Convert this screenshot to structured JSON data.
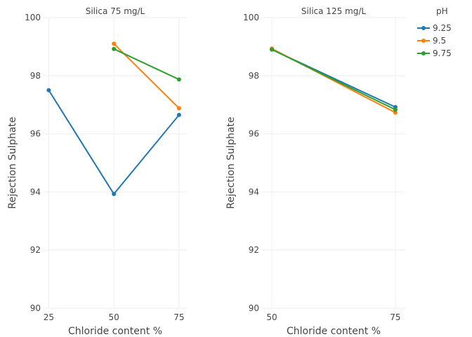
{
  "chart_data": {
    "type": "line",
    "legend": {
      "title": "pH",
      "placement": "top-right",
      "entries": [
        {
          "name": "9.25",
          "color": "#1f77b4"
        },
        {
          "name": "9.5",
          "color": "#ff7f0e"
        },
        {
          "name": "9.75",
          "color": "#2ca02c"
        }
      ]
    },
    "panels": [
      {
        "title": "Silica 75 mg/L",
        "xlabel": "Chloride content %",
        "ylabel": "Rejection Sulphate",
        "x_ticks": [
          25,
          50,
          75
        ],
        "xlim": [
          23,
          78
        ],
        "ylim": [
          90,
          100
        ],
        "y_ticks": [
          90,
          92,
          94,
          96,
          98,
          100
        ],
        "grid": true,
        "series": [
          {
            "name": "9.25",
            "x": [
              25,
              50,
              75
            ],
            "y": [
              97.5,
              93.93,
              96.65
            ]
          },
          {
            "name": "9.5",
            "x": [
              50,
              75
            ],
            "y": [
              99.1,
              96.88
            ]
          },
          {
            "name": "9.75",
            "x": [
              50,
              75
            ],
            "y": [
              98.92,
              97.87
            ]
          }
        ]
      },
      {
        "title": "Silica 125 mg/L",
        "xlabel": "Chloride content %",
        "ylabel": "Rejection Sulphate",
        "x_ticks": [
          50,
          75
        ],
        "xlim": [
          48,
          77
        ],
        "ylim": [
          90,
          100
        ],
        "y_ticks": [
          90,
          92,
          94,
          96,
          98,
          100
        ],
        "grid": true,
        "series": [
          {
            "name": "9.25",
            "x": [
              50,
              75
            ],
            "y": [
              98.9,
              96.92
            ]
          },
          {
            "name": "9.5",
            "x": [
              50,
              75
            ],
            "y": [
              98.93,
              96.73
            ]
          },
          {
            "name": "9.75",
            "x": [
              50,
              75
            ],
            "y": [
              98.9,
              96.83
            ]
          }
        ]
      }
    ]
  }
}
